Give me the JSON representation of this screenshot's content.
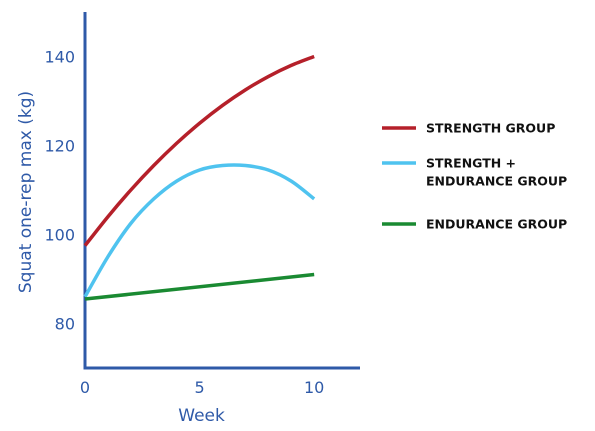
{
  "chart_data": {
    "type": "line",
    "xlabel": "Week",
    "ylabel": "Squat one-rep max (kg)",
    "xlim": [
      0,
      12
    ],
    "ylim": [
      70,
      150
    ],
    "xticks": [
      0,
      5,
      10
    ],
    "yticks": [
      80,
      100,
      120,
      140
    ],
    "grid": false,
    "legend_position": "right",
    "colors": {
      "axis": "#2f5aa8"
    },
    "series": [
      {
        "name": "STRENGTH GROUP",
        "color": "#b5202a",
        "x": [
          0,
          1,
          2,
          3,
          4,
          5,
          6,
          7,
          8,
          9,
          10
        ],
        "y": [
          97.5,
          104,
          110,
          115.5,
          120.5,
          125,
          129,
          132.5,
          135.5,
          138,
          140
        ]
      },
      {
        "name": [
          "STRENGTH +",
          "ENDURANCE GROUP"
        ],
        "color": "#4fc3ef",
        "x": [
          0,
          1,
          2,
          3,
          4,
          5,
          6,
          7,
          8,
          9,
          10
        ],
        "y": [
          86,
          95,
          102.5,
          108,
          112,
          114.5,
          115.5,
          115.5,
          114.5,
          112,
          108
        ]
      },
      {
        "name": "ENDURANCE GROUP",
        "color": "#1a8a32",
        "x": [
          0,
          10
        ],
        "y": [
          85.5,
          91
        ]
      }
    ]
  }
}
